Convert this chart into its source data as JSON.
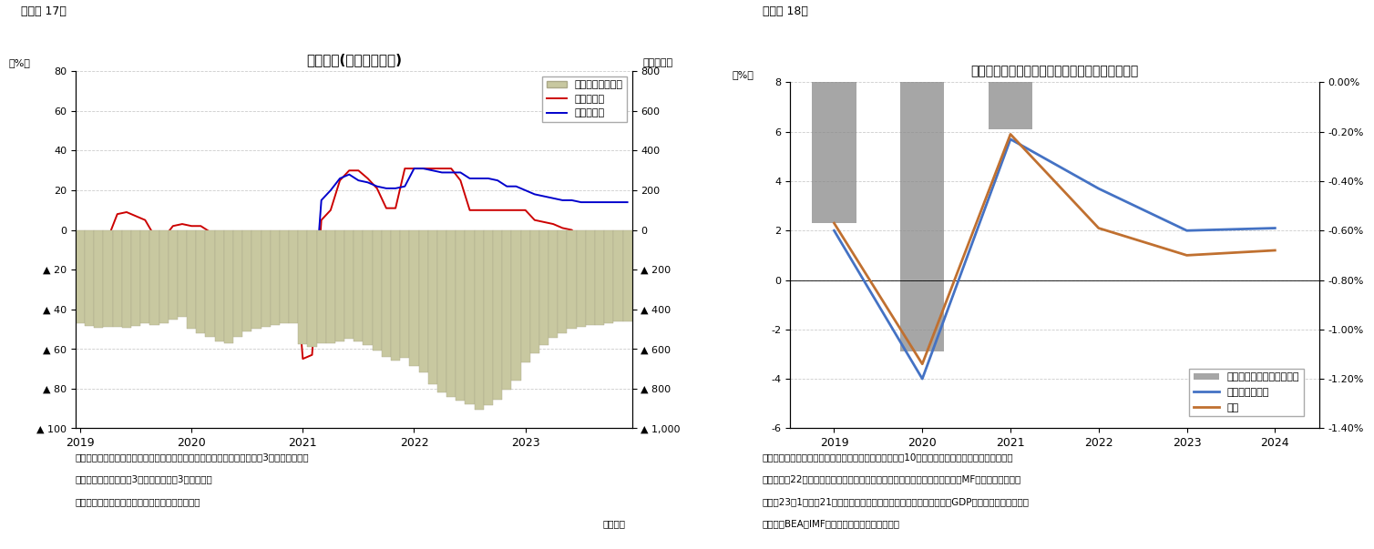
{
  "fig17": {
    "title": "貿易収支(財・サービス)",
    "caption": "（図表 17）",
    "ylabel_left": "（%）",
    "ylabel_right": "（億ドル）",
    "footnote1": "（注）季節調整済、国際収支統計ベースの財およびサービス貿易の合計、3ヵ月移動平均。",
    "footnote2": "　　輸出入伸び率は、3ヵ月移動平均、3ヵ月前比。",
    "footnote3": "（資料）センサス局よりニッセイ基礎研究所作成",
    "footnote4": "（月次）",
    "ylim_left": [
      -100,
      80
    ],
    "ylim_right": [
      -1000,
      800
    ],
    "bar_color": "#c8c8a0",
    "bar_edgecolor": "#aaa888",
    "export_color": "#cc0000",
    "import_color": "#0000cc",
    "months_n": 60,
    "trade_balance": [
      -470,
      -485,
      -495,
      -490,
      -490,
      -495,
      -485,
      -472,
      -480,
      -470,
      -450,
      -440,
      -500,
      -520,
      -540,
      -560,
      -570,
      -540,
      -510,
      -500,
      -490,
      -480,
      -470,
      -470,
      -575,
      -590,
      -570,
      -570,
      -560,
      -550,
      -560,
      -580,
      -610,
      -640,
      -660,
      -645,
      -685,
      -720,
      -780,
      -820,
      -840,
      -860,
      -880,
      -905,
      -885,
      -855,
      -805,
      -760,
      -670,
      -620,
      -580,
      -545,
      -520,
      -500,
      -490,
      -480,
      -480,
      -470,
      -460,
      -460
    ],
    "export_growth": [
      -5,
      -6,
      -5,
      -4,
      8,
      9,
      7,
      5,
      -3,
      -4,
      2,
      3,
      2,
      2,
      -1,
      -2,
      -1,
      -4,
      -11,
      -6,
      -6,
      -11,
      -11,
      -6,
      -65,
      -63,
      5,
      10,
      25,
      30,
      30,
      26,
      21,
      11,
      11,
      31,
      31,
      31,
      31,
      31,
      31,
      25,
      10,
      10,
      10,
      10,
      10,
      10,
      10,
      5,
      4,
      3,
      1,
      0,
      -5,
      -6,
      -6,
      -6,
      -5,
      -5
    ],
    "import_growth": [
      -5,
      -5,
      -6,
      -6,
      -6,
      -7,
      -7,
      -5,
      -5,
      -5,
      -5,
      -5,
      -5,
      -5,
      -8,
      -10,
      -13,
      -13,
      -11,
      -9,
      -8,
      -8,
      -9,
      -8,
      -47,
      -48,
      15,
      20,
      26,
      28,
      25,
      24,
      22,
      21,
      21,
      22,
      31,
      31,
      30,
      29,
      29,
      29,
      26,
      26,
      26,
      25,
      22,
      22,
      20,
      18,
      17,
      16,
      15,
      15,
      14,
      14,
      14,
      14,
      14,
      14
    ],
    "legend": [
      "貿易収支（右軸）",
      "輸出伸び率",
      "輸入伸び率"
    ]
  },
  "fig18": {
    "title": "米国の輸出相手国の成長率と外需の成長率寄与度",
    "caption": "（図表 18）",
    "ylabel_left": "（%）",
    "footnote1": "（注）輸出相手国平均は米国の財・サービス輸出相手国10ヵ国の成長率を輸出額で加重平均した",
    "footnote2": "　　もの。22年以降は米国はニッセイ基礎研究所の見通し、それ以外の国はMFの世界経済見通し",
    "footnote3": "　　（23年1月）と21年の輸出額から試算。外需成長率寄与度は実質GDPにおける外需の寄与度",
    "footnote4": "（資料）BEA、IMFよりニッセイ基礎研究所作成",
    "ylim_left": [
      -6,
      8
    ],
    "ylim_right": [
      -1.4,
      0.0
    ],
    "years": [
      2019,
      2020,
      2021,
      2022,
      2023,
      2024
    ],
    "partner_avg": [
      2.0,
      -4.0,
      5.7,
      3.7,
      2.0,
      2.1
    ],
    "us_growth": [
      2.3,
      -3.4,
      5.9,
      2.1,
      1.0,
      1.2
    ],
    "ext_demand_bars": {
      "2019": -0.57,
      "2020": -1.09,
      "2021": -0.19
    },
    "bar_color": "#888888",
    "bar_color_alpha": 0.75,
    "partner_color": "#4472c4",
    "us_color": "#c07030",
    "legend_labels": [
      "外需成長率寄与度（右軸）",
      "輸出相手国平均",
      "米国"
    ]
  }
}
